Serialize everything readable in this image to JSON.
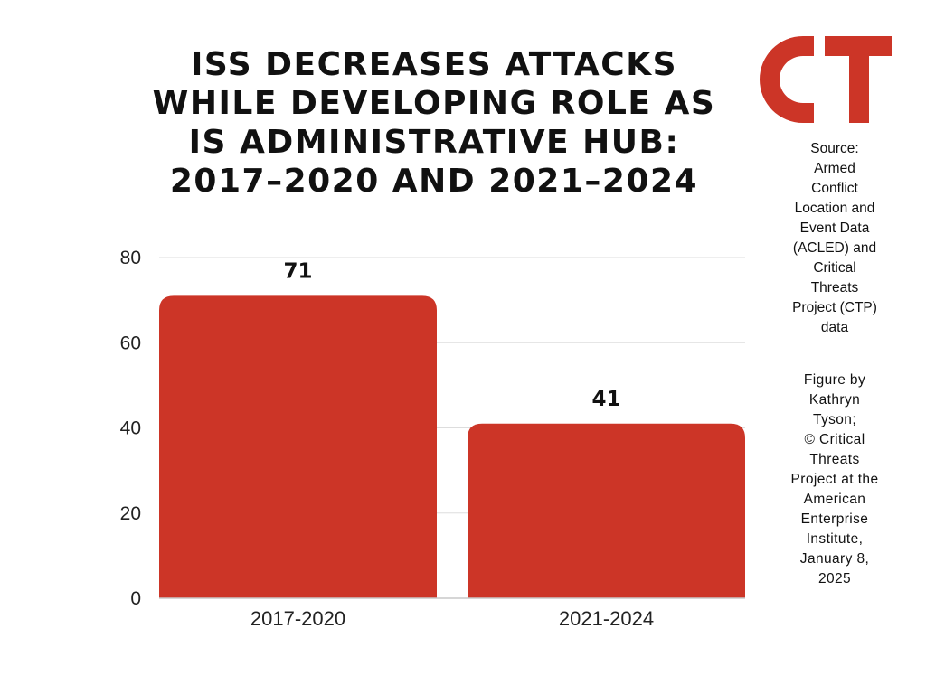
{
  "colors": {
    "bar": "#cc3527",
    "logo": "#cc3527",
    "grid": "#dddddd",
    "baseline": "#c8c8c8"
  },
  "logo_text": "CT",
  "source_lines": [
    "Source:",
    "Armed",
    "Conflict",
    "Location and",
    "Event Data",
    "(ACLED) and",
    "Critical",
    "Threats",
    "Project (CTP)",
    "data"
  ],
  "credit_lines": [
    "Figure by",
    "Kathryn",
    "Tyson;",
    "© Critical",
    "Threats",
    "Project at the",
    "American",
    "Enterprise",
    "Institute,",
    "January 8,",
    "2025"
  ],
  "chart_data": {
    "type": "bar",
    "title": "ISS DECREASES ATTACKS WHILE DEVELOPING ROLE AS IS ADMINISTRATIVE HUB: 2017–2020 AND 2021–2024",
    "title_lines": [
      "ISS DECREASES ATTACKS",
      "WHILE DEVELOPING ROLE AS",
      "IS ADMINISTRATIVE HUB:",
      "2017–2020 AND 2021–2024"
    ],
    "categories": [
      "2017-2020",
      "2021-2024"
    ],
    "values": [
      71,
      41
    ],
    "data_labels": [
      "71",
      "41"
    ],
    "xlabel": "",
    "ylabel": "",
    "ylim": [
      0,
      80
    ],
    "yticks": [
      0,
      20,
      40,
      60,
      80
    ],
    "ytick_labels": [
      "0",
      "20",
      "40",
      "60",
      "80"
    ],
    "grid": true,
    "legend": "none"
  }
}
